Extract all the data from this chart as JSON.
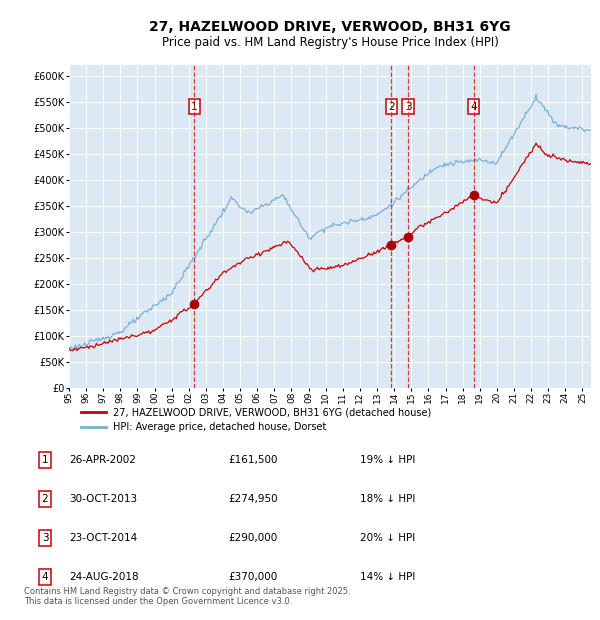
{
  "title": "27, HAZELWOOD DRIVE, VERWOOD, BH31 6YG",
  "subtitle": "Price paid vs. HM Land Registry's House Price Index (HPI)",
  "title_fontsize": 10,
  "subtitle_fontsize": 8.5,
  "background_color": "#ffffff",
  "plot_bg_color": "#dce9f5",
  "grid_color": "#ffffff",
  "red_line_color": "#cc0000",
  "blue_line_color": "#7ab0d4",
  "ylim": [
    0,
    620000
  ],
  "yticks": [
    0,
    50000,
    100000,
    150000,
    200000,
    250000,
    300000,
    350000,
    400000,
    450000,
    500000,
    550000,
    600000
  ],
  "ytick_labels": [
    "£0",
    "£50K",
    "£100K",
    "£150K",
    "£200K",
    "£250K",
    "£300K",
    "£350K",
    "£400K",
    "£450K",
    "£500K",
    "£550K",
    "£600K"
  ],
  "sale_dates_num": [
    2002.32,
    2013.83,
    2014.81,
    2018.65
  ],
  "sale_prices": [
    161500,
    274950,
    290000,
    370000
  ],
  "sale_labels": [
    "1",
    "2",
    "3",
    "4"
  ],
  "dashed_line_color": "#dd2222",
  "marker_color": "#aa0000",
  "box_edge_color": "#cc0000",
  "footer_text": "Contains HM Land Registry data © Crown copyright and database right 2025.\nThis data is licensed under the Open Government Licence v3.0.",
  "legend_entries": [
    "27, HAZELWOOD DRIVE, VERWOOD, BH31 6YG (detached house)",
    "HPI: Average price, detached house, Dorset"
  ],
  "table_rows": [
    {
      "num": "1",
      "date": "26-APR-2002",
      "price": "£161,500",
      "info": "19% ↓ HPI"
    },
    {
      "num": "2",
      "date": "30-OCT-2013",
      "price": "£274,950",
      "info": "18% ↓ HPI"
    },
    {
      "num": "3",
      "date": "23-OCT-2014",
      "price": "£290,000",
      "info": "20% ↓ HPI"
    },
    {
      "num": "4",
      "date": "24-AUG-2018",
      "price": "£370,000",
      "info": "14% ↓ HPI"
    }
  ]
}
